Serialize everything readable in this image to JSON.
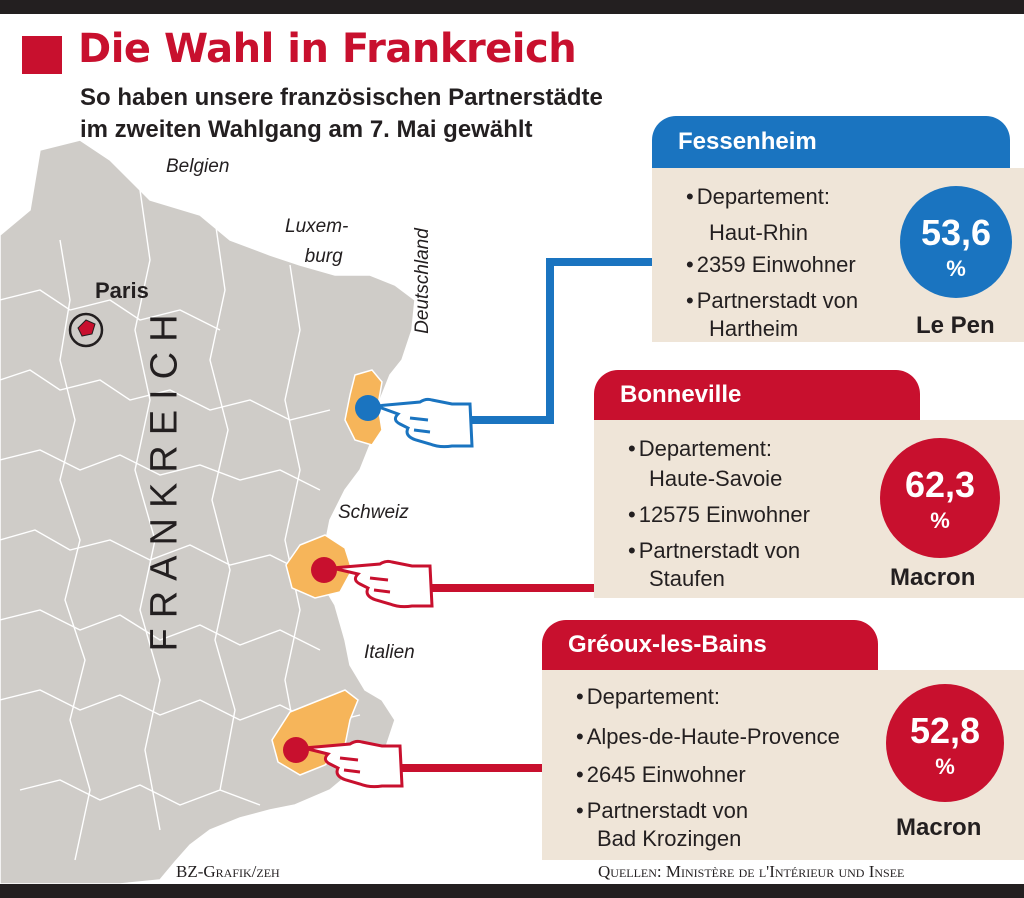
{
  "title": "Die Wahl in Frankreich",
  "subtitle": [
    "So haben unsere französischen Partnerstädte",
    "im zweiten Wahlgang am 7. Mai gewählt"
  ],
  "map_labels": {
    "belgien": "Belgien",
    "luxemburg": [
      "Luxem-",
      "burg"
    ],
    "deutschland": "Deutschland",
    "schweiz": "Schweiz",
    "italien": "Italien",
    "paris": "Paris",
    "frankreich": "FRANKREICH"
  },
  "cities": [
    {
      "name": "Fessenheim",
      "lines": [
        "Departement:",
        "Haut-Rhin",
        "2359 Einwohner",
        "Partnerstadt von",
        "Hartheim"
      ],
      "percent": "53,6",
      "percent_sign": "%",
      "winner": "Le Pen",
      "color": "#1a74c0"
    },
    {
      "name": "Bonneville",
      "lines": [
        "Departement:",
        "Haute-Savoie",
        "12575 Einwohner",
        "Partnerstadt von",
        "Staufen"
      ],
      "percent": "62,3",
      "percent_sign": "%",
      "winner": "Macron",
      "color": "#c8102e"
    },
    {
      "name": "Gréoux-les-Bains",
      "lines": [
        "Departement:",
        "Alpes-de-Haute-Provence",
        "2645 Einwohner",
        "Partnerstadt von",
        "Bad Krozingen"
      ],
      "percent": "52,8",
      "percent_sign": "%",
      "winner": "Macron",
      "color": "#c8102e"
    }
  ],
  "credits": {
    "left": "BZ-Grafik/zeh",
    "right": "Quellen: Ministère de l'Intérieur und Insee"
  },
  "colors": {
    "map_fill": "#cfccc8",
    "highlight": "#f6b55a",
    "card_bg": "#efe5d8",
    "red": "#c8102e",
    "blue": "#1a74c0"
  }
}
